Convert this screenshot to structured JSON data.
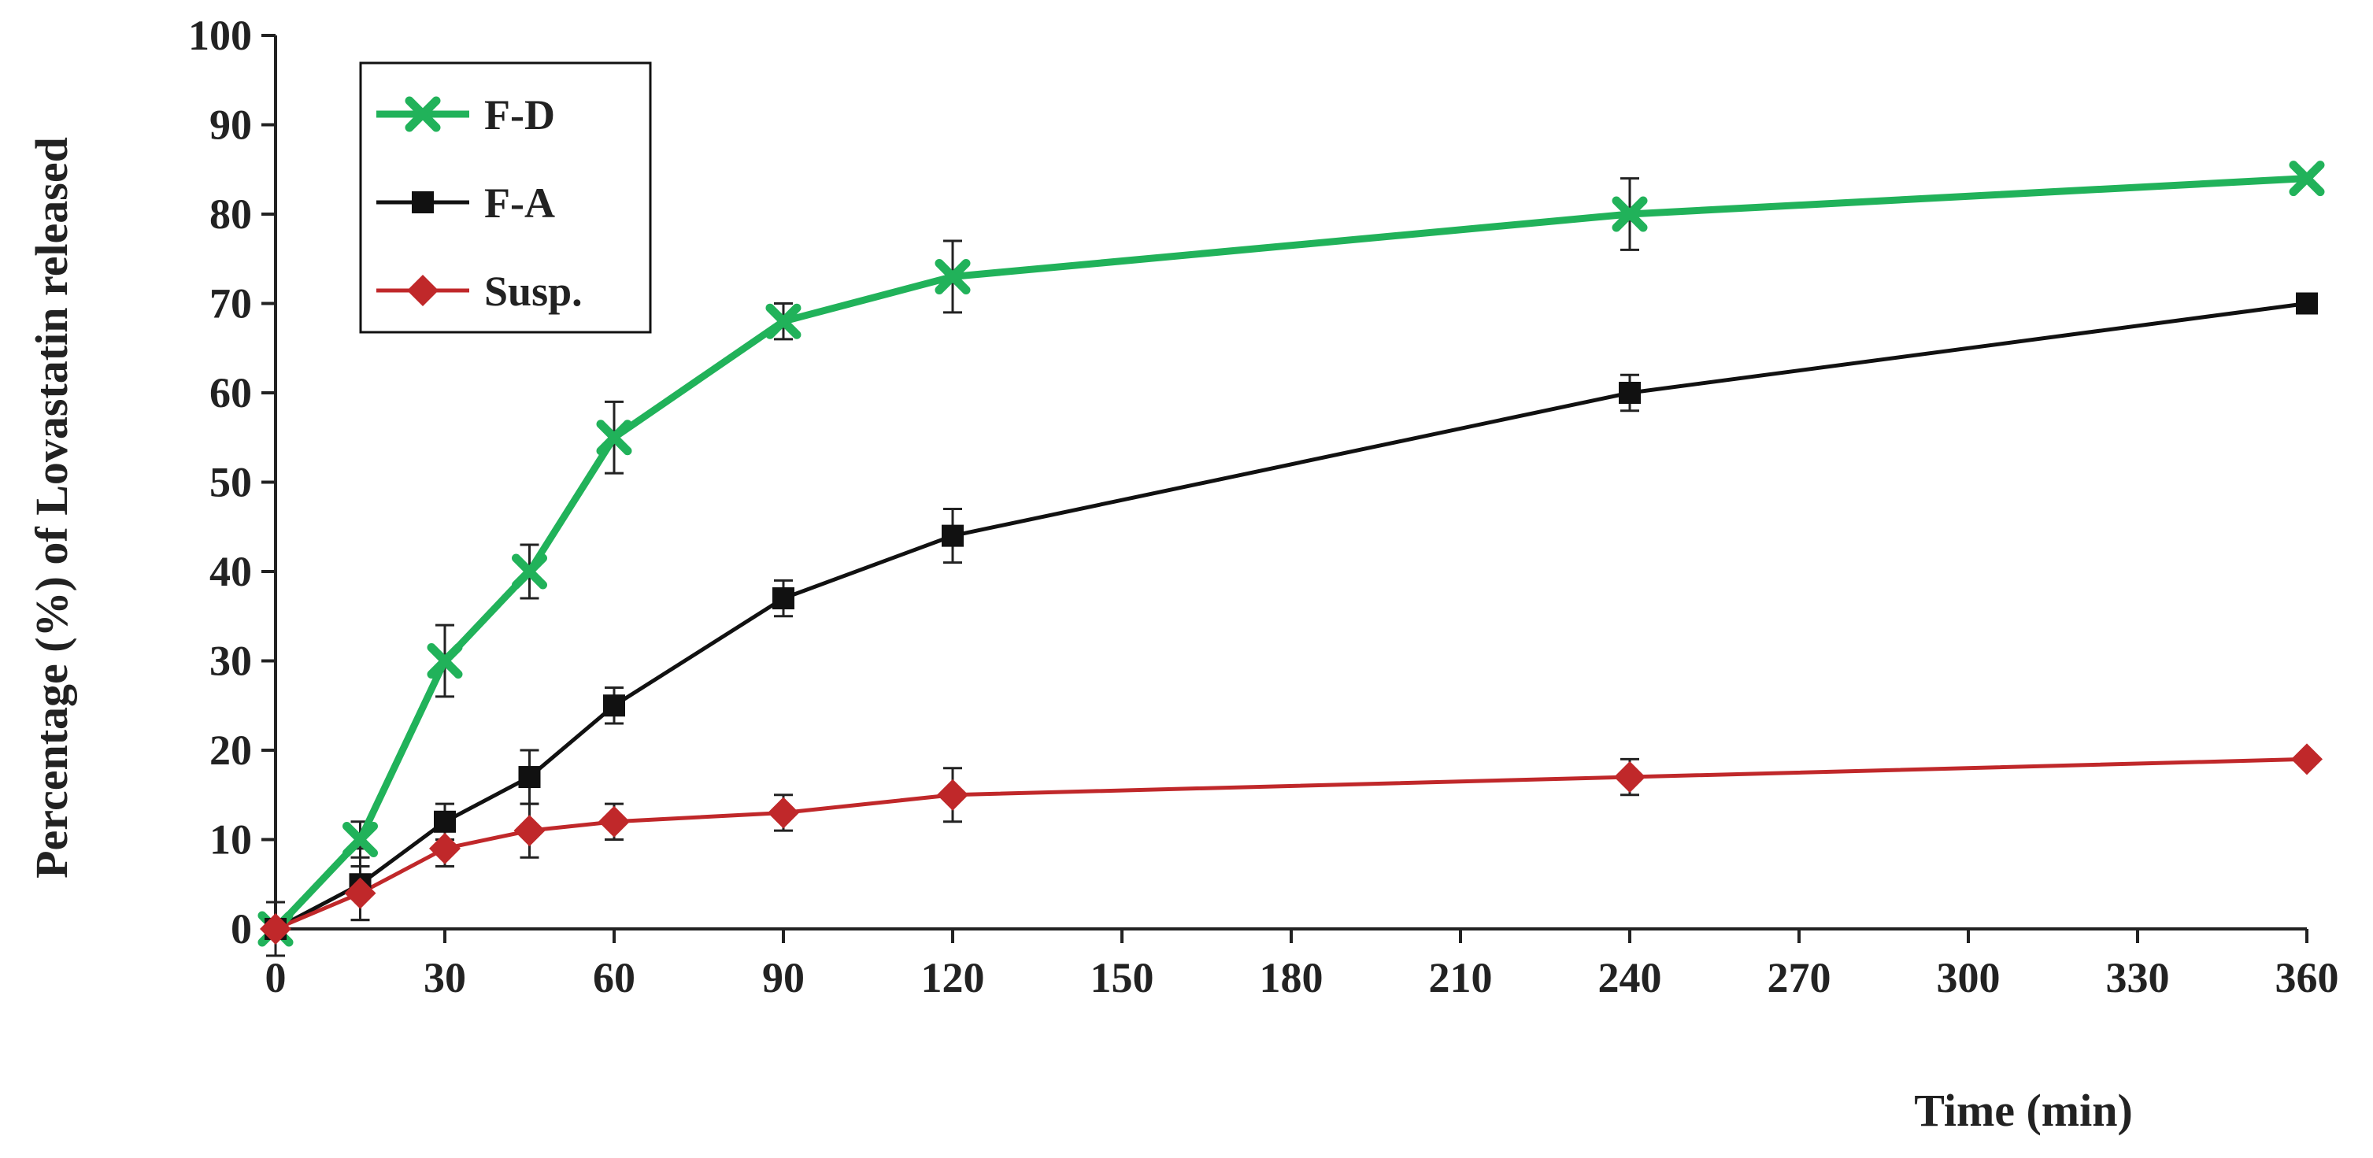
{
  "chart_data": {
    "type": "line",
    "title": "",
    "xlabel": "Time (min)",
    "ylabel": "Percentage (%) of Lovastatin released",
    "xlim": [
      0,
      360
    ],
    "ylim": [
      0,
      100
    ],
    "x_ticks": [
      0,
      30,
      60,
      90,
      120,
      150,
      180,
      210,
      240,
      270,
      300,
      330,
      360
    ],
    "y_ticks": [
      0,
      10,
      20,
      30,
      40,
      50,
      60,
      70,
      80,
      90,
      100
    ],
    "x_tick_labels": [
      "0",
      "30",
      "60",
      "90",
      "120",
      "150",
      "180",
      "210",
      "240",
      "270",
      "300",
      "330",
      "360"
    ],
    "y_tick_labels": [
      "0",
      "10",
      "20",
      "30",
      "40",
      "50",
      "60",
      "70",
      "80",
      "90",
      "100"
    ],
    "grid": false,
    "legend_position": "top-left",
    "series": [
      {
        "name": "F-D",
        "color": "#21b25a",
        "marker": "x",
        "x": [
          0,
          15,
          30,
          45,
          60,
          90,
          120,
          240,
          360
        ],
        "y": [
          0,
          10,
          30,
          40,
          55,
          68,
          73,
          80,
          84
        ],
        "error": [
          3,
          2,
          4,
          3,
          4,
          2,
          4,
          4,
          0
        ]
      },
      {
        "name": "F-A",
        "color": "#111111",
        "marker": "square",
        "x": [
          0,
          15,
          30,
          45,
          60,
          90,
          120,
          240,
          360
        ],
        "y": [
          0,
          5,
          12,
          17,
          25,
          37,
          44,
          60,
          70
        ],
        "error": [
          0,
          4,
          2,
          3,
          2,
          2,
          3,
          2,
          0
        ]
      },
      {
        "name": "Susp.",
        "color": "#c0282a",
        "marker": "diamond",
        "x": [
          0,
          15,
          30,
          45,
          60,
          90,
          120,
          240,
          360
        ],
        "y": [
          0,
          4,
          9,
          11,
          12,
          13,
          15,
          17,
          19
        ],
        "error": [
          0,
          3,
          2,
          3,
          2,
          2,
          3,
          2,
          0
        ]
      }
    ]
  }
}
